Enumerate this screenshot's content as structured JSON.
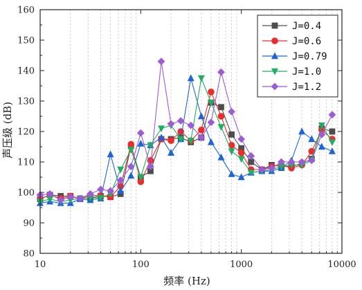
{
  "chart_data": {
    "type": "line",
    "title": "",
    "xlabel": "频率 (Hz)",
    "ylabel": "声压级 (dB)",
    "xscale": "log",
    "xlim": [
      10,
      10000
    ],
    "ylim": [
      80,
      160
    ],
    "xticks": [
      10,
      100,
      1000,
      10000
    ],
    "xtick_labels": [
      "10",
      "100",
      "1000",
      "10000"
    ],
    "yticks": [
      80,
      90,
      100,
      110,
      120,
      130,
      140,
      150,
      160
    ],
    "ytick_labels": [
      "80",
      "90",
      "100",
      "110",
      "120",
      "130",
      "140",
      "150",
      "160"
    ],
    "grid": "vertical dotted minor lines on x",
    "legend_position": "top-right",
    "x": [
      10,
      12.5,
      16,
      20,
      25,
      31.5,
      40,
      50,
      63,
      80,
      100,
      125,
      160,
      200,
      250,
      315,
      400,
      500,
      630,
      800,
      1000,
      1250,
      1600,
      2000,
      2500,
      3150,
      4000,
      5000,
      6300,
      8000
    ],
    "series": [
      {
        "name": "J=0.4",
        "color": "#4d4d4d",
        "marker": "square",
        "values": [
          97.8,
          99.2,
          98.8,
          98.8,
          98.0,
          98.2,
          98.8,
          98.5,
          99.5,
          115.2,
          105.0,
          107.0,
          117.5,
          117.5,
          118.0,
          116.5,
          118.0,
          129.5,
          128.0,
          119.0,
          114.5,
          110.0,
          107.5,
          109.0,
          108.5,
          108.5,
          109.5,
          111.0,
          121.0,
          120.0
        ]
      },
      {
        "name": "J=0.6",
        "color": "#ee2a2a",
        "marker": "circle",
        "values": [
          97.8,
          99.2,
          98.0,
          98.8,
          98.0,
          99.0,
          99.0,
          98.5,
          102.0,
          115.8,
          103.5,
          110.5,
          117.5,
          117.0,
          120.0,
          117.0,
          120.5,
          133.0,
          125.0,
          115.5,
          113.0,
          107.5,
          107.5,
          108.5,
          109.0,
          108.0,
          109.0,
          113.5,
          120.5,
          117.5
        ]
      },
      {
        "name": "J=0.79",
        "color": "#1f63d8",
        "marker": "triangle-up",
        "values": [
          96.5,
          97.0,
          96.5,
          96.5,
          97.8,
          97.5,
          98.0,
          112.5,
          100.5,
          105.5,
          116.0,
          115.5,
          118.0,
          113.0,
          117.5,
          137.5,
          125.0,
          116.5,
          111.5,
          106.0,
          105.0,
          106.5,
          107.0,
          107.0,
          108.0,
          110.5,
          120.0,
          117.5,
          115.0,
          113.5
        ]
      },
      {
        "name": "J=1.0",
        "color": "#1fae62",
        "marker": "triangle-down",
        "values": [
          97.0,
          97.8,
          97.0,
          97.5,
          98.0,
          98.2,
          98.2,
          99.5,
          107.5,
          114.0,
          105.0,
          115.5,
          121.0,
          122.0,
          117.5,
          117.0,
          137.5,
          129.5,
          121.5,
          113.5,
          111.0,
          106.5,
          107.0,
          107.5,
          108.5,
          109.0,
          109.0,
          110.5,
          122.0,
          116.5
        ]
      },
      {
        "name": "J=1.2",
        "color": "#9b5cd6",
        "marker": "diamond",
        "values": [
          99.2,
          99.5,
          97.5,
          98.5,
          98.0,
          99.5,
          101.0,
          100.5,
          104.0,
          108.5,
          119.5,
          108.5,
          143.0,
          122.5,
          123.5,
          122.0,
          118.0,
          123.0,
          139.5,
          126.5,
          117.5,
          112.0,
          107.5,
          108.0,
          110.0,
          110.0,
          110.0,
          110.5,
          119.0,
          125.5
        ]
      }
    ]
  }
}
